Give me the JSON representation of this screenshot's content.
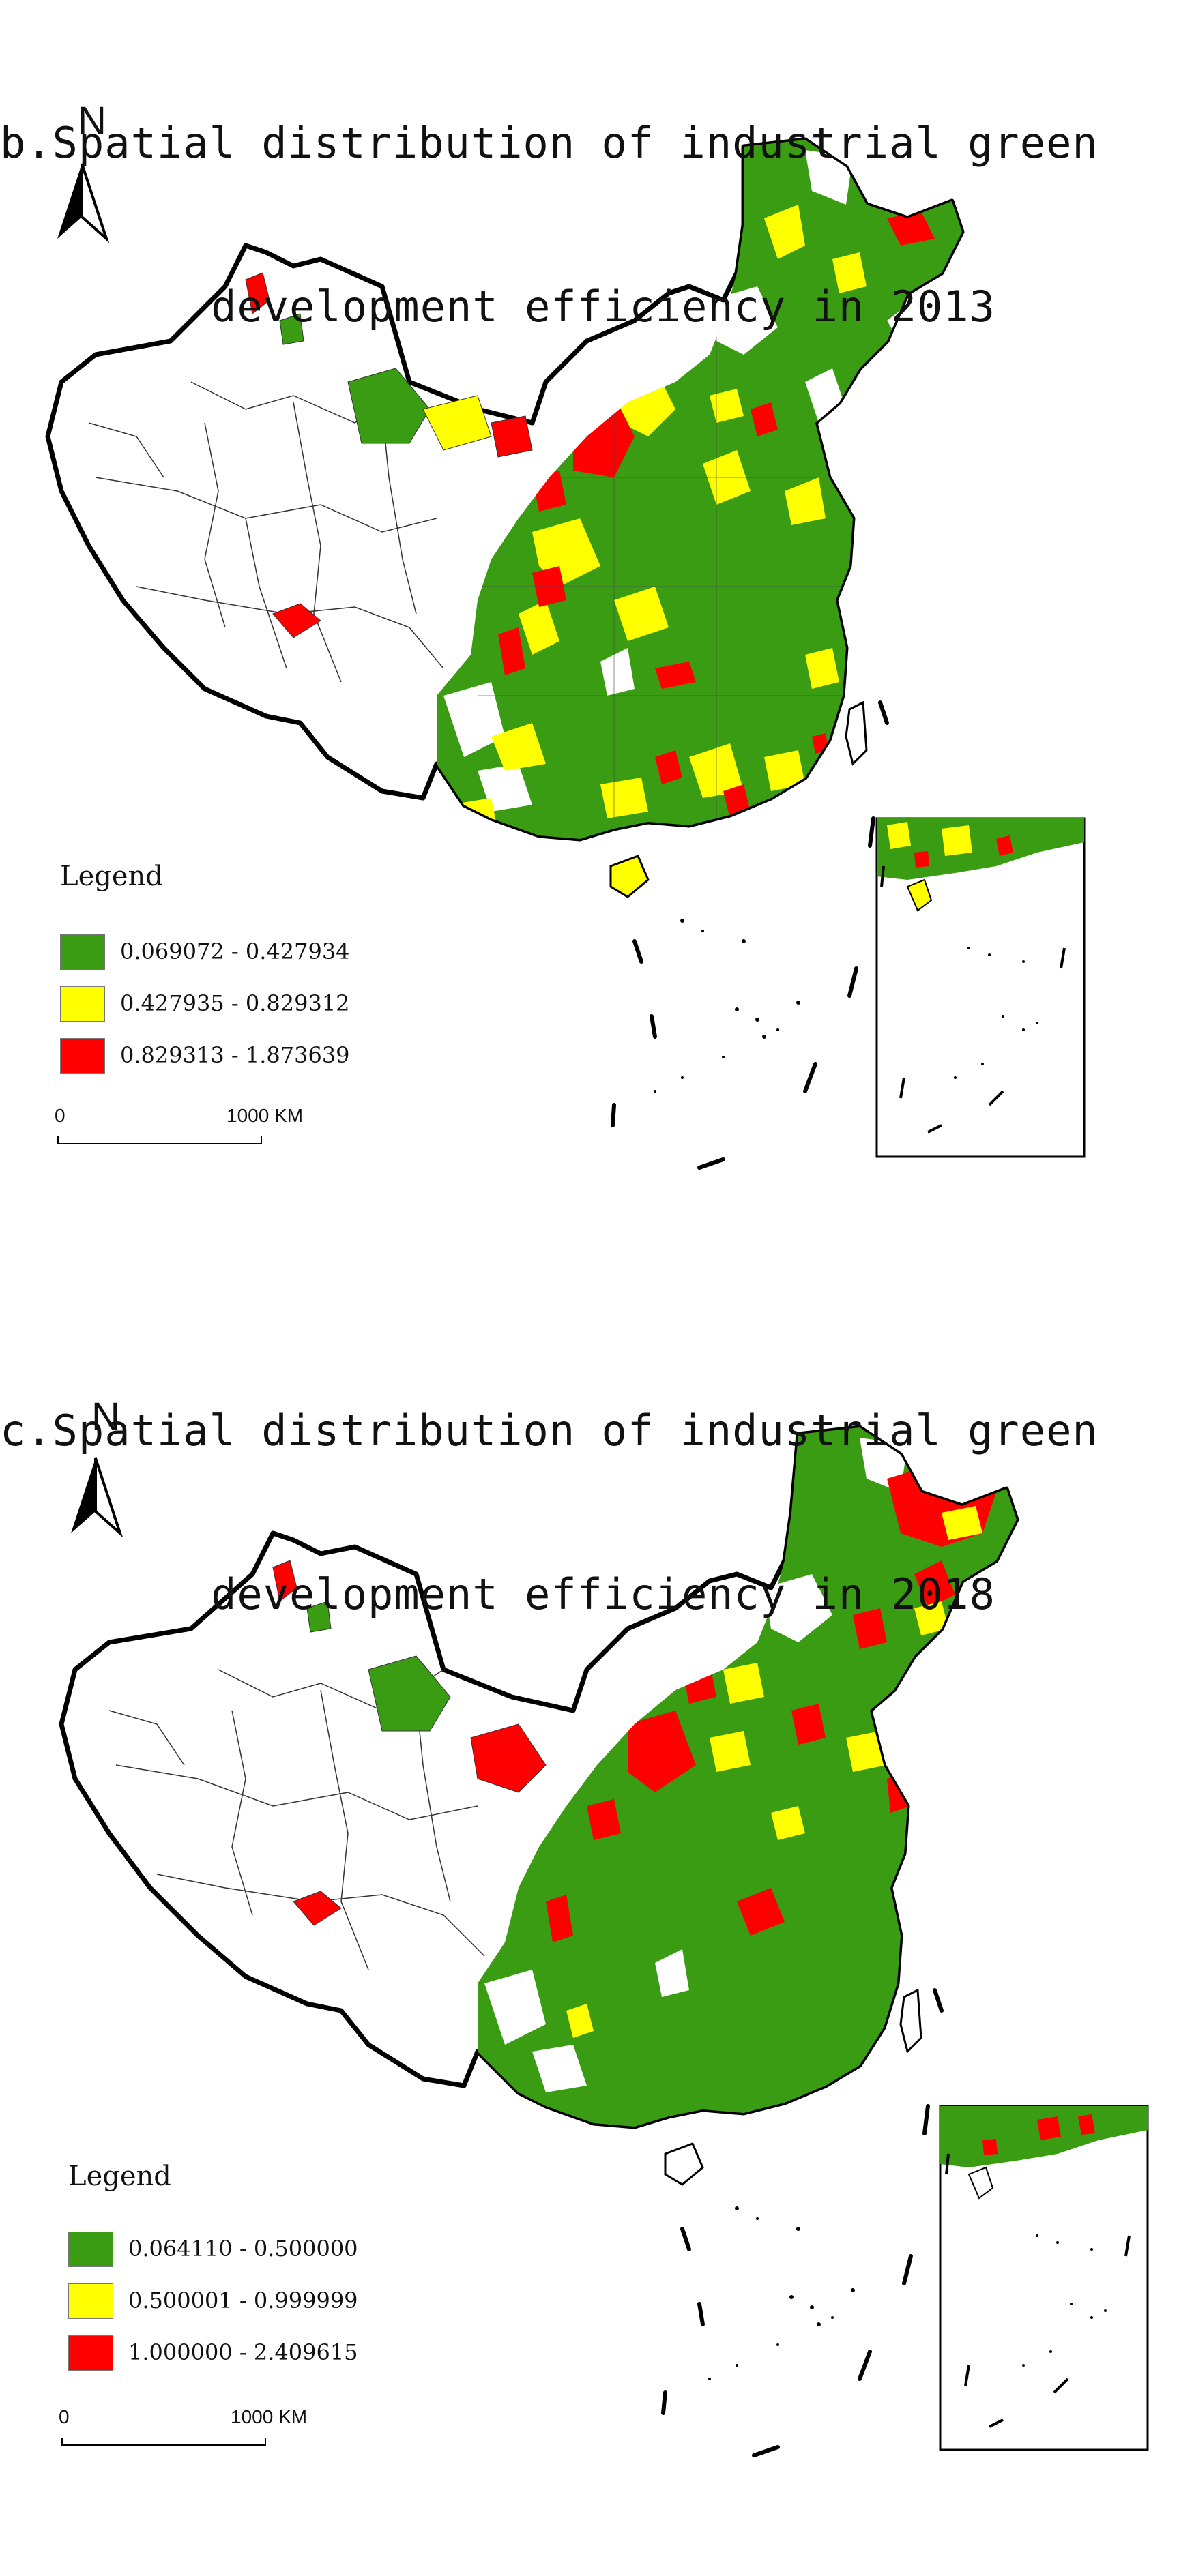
{
  "colors": {
    "low": "#3a9c12",
    "mid": "#ffff00",
    "high": "#ff0000",
    "boundary": "#000000"
  },
  "panels": [
    {
      "title_line1": "b.Spatial distribution of industrial green",
      "title_line2": "development efficiency in 2013",
      "north_label": "N",
      "legend_title": "Legend",
      "legend": [
        {
          "label": "0.069072 - 0.427934",
          "color": "#3a9c12"
        },
        {
          "label": "0.427935 - 0.829312",
          "color": "#ffff00"
        },
        {
          "label": "0.829313 - 1.873639",
          "color": "#ff0000"
        }
      ],
      "scale_start": "0",
      "scale_end": "1000 KM"
    },
    {
      "title_line1": "c.Spatial distribution of industrial green",
      "title_line2": "development efficiency in 2018",
      "north_label": "N",
      "legend_title": "Legend",
      "legend": [
        {
          "label": "0.064110 - 0.500000",
          "color": "#3a9c12"
        },
        {
          "label": "0.500001 - 0.999999",
          "color": "#ffff00"
        },
        {
          "label": "1.000000 - 2.409615",
          "color": "#ff0000"
        }
      ],
      "scale_start": "0",
      "scale_end": "1000 KM"
    }
  ]
}
